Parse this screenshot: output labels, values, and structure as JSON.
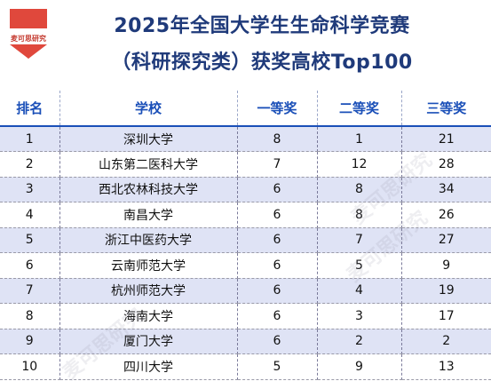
{
  "logo": {
    "text": "麦可思研究",
    "color": "#e0483c"
  },
  "title": {
    "line1": "2025年全国大学生生命科学竞赛",
    "line2": "（科研探究类）获奖高校Top100"
  },
  "table": {
    "headers": [
      "排名",
      "学校",
      "一等奖",
      "二等奖",
      "三等奖"
    ],
    "rows": [
      {
        "rank": "1",
        "school": "深圳大学",
        "first": "8",
        "second": "1",
        "third": "21"
      },
      {
        "rank": "2",
        "school": "山东第二医科大学",
        "first": "7",
        "second": "12",
        "third": "28"
      },
      {
        "rank": "3",
        "school": "西北农林科技大学",
        "first": "6",
        "second": "8",
        "third": "34"
      },
      {
        "rank": "4",
        "school": "南昌大学",
        "first": "6",
        "second": "8",
        "third": "26"
      },
      {
        "rank": "5",
        "school": "浙江中医药大学",
        "first": "6",
        "second": "7",
        "third": "27"
      },
      {
        "rank": "6",
        "school": "云南师范大学",
        "first": "6",
        "second": "5",
        "third": "9"
      },
      {
        "rank": "7",
        "school": "杭州师范大学",
        "first": "6",
        "second": "4",
        "third": "19"
      },
      {
        "rank": "8",
        "school": "海南大学",
        "first": "6",
        "second": "3",
        "third": "17"
      },
      {
        "rank": "9",
        "school": "厦门大学",
        "first": "6",
        "second": "2",
        "third": "2"
      },
      {
        "rank": "10",
        "school": "四川大学",
        "first": "5",
        "second": "9",
        "third": "13"
      }
    ]
  },
  "watermark": {
    "text": "麦可思研究"
  },
  "colors": {
    "title": "#1f3a7a",
    "header": "#1a4fb8",
    "shade": "#dfe3f5"
  }
}
